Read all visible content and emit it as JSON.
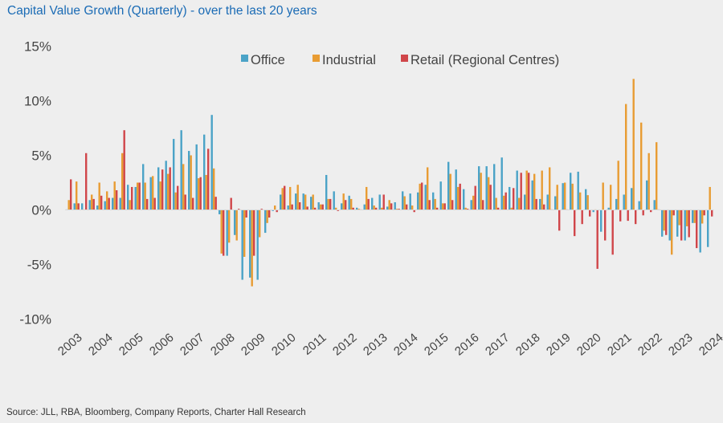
{
  "title": "Capital Value Growth (Quarterly) - over the last 20 years",
  "source": "Source: JLL, RBA, Bloomberg, Company Reports, Charter Hall Research",
  "chart_data": {
    "type": "bar",
    "title": "Capital Value Growth (Quarterly) - over the last 20 years",
    "xlabel": "",
    "ylabel": "",
    "ylim": [
      -10,
      15
    ],
    "yticks": [
      "15%",
      "10%",
      "5%",
      "0%",
      "-5%",
      "-10%"
    ],
    "ytick_values": [
      15,
      10,
      5,
      0,
      -5,
      -10
    ],
    "grid": false,
    "legend_position": "top-center",
    "x_tick_labels": [
      "2003",
      "2004",
      "2005",
      "2006",
      "2007",
      "2008",
      "2009",
      "2010",
      "2011",
      "2012",
      "2013",
      "2014",
      "2015",
      "2016",
      "2017",
      "2018",
      "2019",
      "2020",
      "2021",
      "2022",
      "2023",
      "2024"
    ],
    "quarters_per_label": 4,
    "series": [
      {
        "name": "Office",
        "color": "#4ba3c7",
        "values": [
          0.0,
          0.6,
          0.6,
          0.9,
          0.4,
          0.8,
          1.1,
          1.1,
          2.3,
          2.1,
          4.2,
          3.0,
          3.9,
          4.5,
          6.5,
          7.3,
          5.4,
          6.0,
          6.9,
          8.7,
          -0.4,
          -4.2,
          -2.3,
          -6.4,
          -6.2,
          -6.4,
          -2.1,
          -0.1,
          1.4,
          0.4,
          1.5,
          1.5,
          1.2,
          0.7,
          3.2,
          1.7,
          0.6,
          1.3,
          0.2,
          0.5,
          1.1,
          1.4,
          0.3,
          0.7,
          1.7,
          1.5,
          1.6,
          2.3,
          1.6,
          2.6,
          4.4,
          3.7,
          1.9,
          0.9,
          4.0,
          4.0,
          4.2,
          4.8,
          2.1,
          3.6,
          1.4,
          2.7,
          1.0,
          1.4,
          1.25,
          2.45,
          3.4,
          3.5,
          1.9,
          -0.2,
          -2.0,
          0.2,
          1.0,
          1.4,
          2.0,
          0.8,
          2.7,
          0.9,
          -2.45,
          -2.8,
          -2.45,
          -2.8,
          -1.2,
          -3.9,
          -3.4
        ]
      },
      {
        "name": "Industrial",
        "color": "#e89c33",
        "values": [
          0.9,
          2.6,
          0.0,
          1.4,
          2.5,
          1.7,
          2.6,
          5.2,
          0.9,
          2.5,
          2.5,
          3.1,
          2.6,
          3.3,
          1.6,
          4.2,
          5.0,
          2.9,
          3.2,
          3.8,
          -4.0,
          -3.0,
          -2.8,
          -4.3,
          -7.0,
          -2.5,
          -1.2,
          0.4,
          2.0,
          2.1,
          2.3,
          1.4,
          1.4,
          0.5,
          1.0,
          0.2,
          1.5,
          1.0,
          0.1,
          2.1,
          0.4,
          0.2,
          0.9,
          0.1,
          1.25,
          0.4,
          2.4,
          3.9,
          1.0,
          0.6,
          3.3,
          2.1,
          0.2,
          1.3,
          3.4,
          3.0,
          1.1,
          1.3,
          0.2,
          1.1,
          3.6,
          3.3,
          3.6,
          3.9,
          2.3,
          2.5,
          2.4,
          1.6,
          1.35,
          0.0,
          2.5,
          2.3,
          4.5,
          9.7,
          12.0,
          8.0,
          5.2,
          6.2,
          -1.9,
          -4.1,
          -1.4,
          -1.5,
          -1.2,
          -1.25,
          2.1
        ]
      },
      {
        "name": "Retail (Regional Centres)",
        "color": "#d0464a",
        "values": [
          2.8,
          0.6,
          5.2,
          1.0,
          1.3,
          1.1,
          1.8,
          7.3,
          2.1,
          2.5,
          1.0,
          1.1,
          3.7,
          3.9,
          2.2,
          1.4,
          1.1,
          3.0,
          5.6,
          1.2,
          -4.2,
          1.1,
          0.1,
          -0.7,
          -4.2,
          0.1,
          -0.7,
          -0.2,
          2.2,
          0.5,
          0.7,
          0.3,
          0.2,
          0.5,
          1.0,
          -0.1,
          0.9,
          0.2,
          0.0,
          1.0,
          0.2,
          1.4,
          0.6,
          0.1,
          0.5,
          -0.2,
          2.5,
          0.9,
          0.2,
          0.6,
          0.9,
          2.4,
          0.1,
          2.2,
          0.9,
          2.3,
          0.2,
          1.6,
          2.0,
          3.4,
          3.4,
          1.0,
          0.5,
          0.0,
          -1.9,
          0.0,
          -2.4,
          -1.3,
          -0.6,
          -5.4,
          -2.8,
          -4.1,
          -1.05,
          -1.0,
          -1.3,
          -0.5,
          -0.2,
          0.0,
          -2.3,
          -0.5,
          -2.8,
          -2.5,
          -3.5,
          -0.5,
          -0.6
        ]
      }
    ]
  }
}
